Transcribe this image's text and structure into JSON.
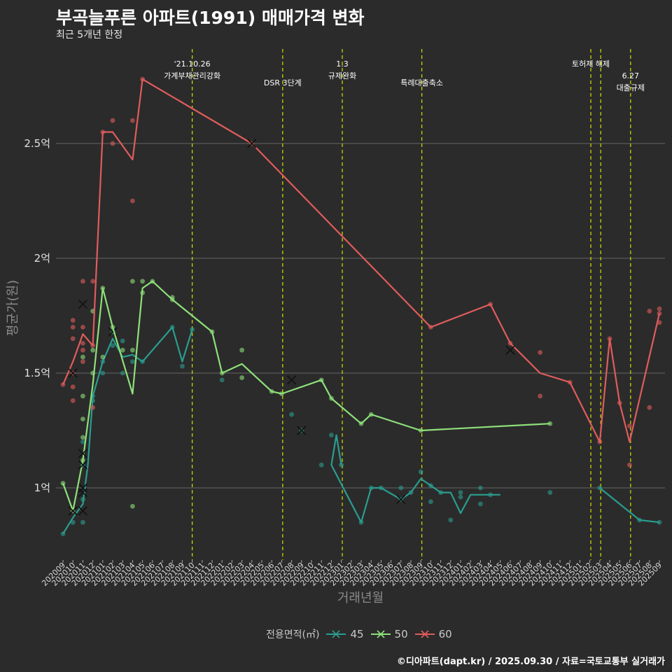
{
  "chart_data": {
    "type": "line",
    "title": "부곡늘푸른 아파트(1991) 매매가격 변화",
    "subtitle": "최근 5개년 한정",
    "xlabel": "거래년월",
    "ylabel": "평균가(원)",
    "caption": "©디아파트(dapt.kr) / 2025.09.30 / 자료=국토교통부 실거래가",
    "legend_title": "전용면적(㎡)",
    "categories": [
      "202009",
      "202010",
      "202011",
      "202012",
      "202101",
      "202102",
      "202103",
      "202104",
      "202105",
      "202106",
      "202107",
      "202108",
      "202109",
      "202110",
      "202111",
      "202112",
      "202201",
      "202202",
      "202203",
      "202204",
      "202205",
      "202206",
      "202207",
      "202208",
      "202209",
      "202210",
      "202211",
      "202212",
      "202301",
      "202302",
      "202303",
      "202304",
      "202305",
      "202306",
      "202307",
      "202308",
      "202309",
      "202310",
      "202311",
      "202312",
      "202401",
      "202402",
      "202403",
      "202404",
      "202405",
      "202406",
      "202407",
      "202408",
      "202409",
      "202410",
      "202411",
      "202412",
      "202501",
      "202502",
      "202503",
      "202504",
      "202505",
      "202506",
      "202507",
      "202508",
      "202509"
    ],
    "ylim": [
      0.7,
      2.9
    ],
    "y_ticks": [
      {
        "value": 1.0,
        "label": "1억"
      },
      {
        "value": 1.5,
        "label": "1.5억"
      },
      {
        "value": 2.0,
        "label": "2억"
      },
      {
        "value": 2.5,
        "label": "2.5억"
      }
    ],
    "vlines": [
      {
        "pos": 13.0,
        "label": "'21.10.26\n가계부채관리강화",
        "row": 0
      },
      {
        "pos": 22.1,
        "label": "DSR 3단계",
        "row": 1
      },
      {
        "pos": 28.1,
        "label": "1.3\n규제완화",
        "row": 0
      },
      {
        "pos": 36.1,
        "label": "특례대출축소",
        "row": 1
      },
      {
        "pos": 53.1,
        "label": "토허제 해제",
        "row": 0
      },
      {
        "pos": 54.1,
        "label": "",
        "row": 0
      },
      {
        "pos": 57.1,
        "label": "6.27\n대출규제",
        "row": 2
      }
    ],
    "series": [
      {
        "name": "45",
        "color": "#2a9d8f",
        "line": [
          [
            0,
            0.8
          ],
          [
            1,
            0.87
          ],
          [
            2,
            0.93
          ],
          [
            2.5,
            1.1
          ],
          [
            3,
            1.4
          ],
          [
            4,
            1.55
          ],
          [
            5,
            1.65
          ],
          [
            6,
            1.57
          ],
          [
            7,
            1.58
          ],
          [
            8,
            1.55
          ],
          [
            11,
            1.7
          ],
          [
            12,
            1.55
          ],
          [
            13,
            1.69
          ],
          [
            28,
            1.1
          ],
          [
            27.5,
            1.23
          ],
          [
            27,
            1.1
          ],
          [
            30,
            0.85
          ],
          [
            31,
            1.0
          ],
          [
            32,
            1.0
          ],
          [
            34,
            0.95
          ],
          [
            35,
            0.98
          ],
          [
            36,
            1.04
          ],
          [
            37,
            1.01
          ],
          [
            38,
            0.98
          ],
          [
            39,
            0.98
          ],
          [
            40,
            0.89
          ],
          [
            41,
            0.97
          ],
          [
            43,
            0.97
          ],
          [
            44,
            0.97
          ],
          [
            54,
            1.0
          ],
          [
            58,
            0.86
          ],
          [
            60,
            0.85
          ]
        ],
        "line_breaks": [
          [
            13,
            28
          ],
          [
            28,
            30
          ],
          [
            44,
            54
          ]
        ],
        "points": [
          [
            0,
            0.8
          ],
          [
            1,
            0.85
          ],
          [
            2,
            0.85
          ],
          [
            2,
            0.95
          ],
          [
            2,
            1.1
          ],
          [
            2,
            1.2
          ],
          [
            3,
            1.38
          ],
          [
            3,
            1.4
          ],
          [
            4,
            1.5
          ],
          [
            4,
            1.55
          ],
          [
            5,
            1.62
          ],
          [
            5,
            1.68
          ],
          [
            6,
            1.5
          ],
          [
            6,
            1.64
          ],
          [
            7,
            1.55
          ],
          [
            8,
            1.55
          ],
          [
            11,
            1.7
          ],
          [
            12,
            1.53
          ],
          [
            13,
            1.69
          ],
          [
            16,
            1.47
          ],
          [
            23,
            1.32
          ],
          [
            24,
            1.25
          ],
          [
            26,
            1.1
          ],
          [
            27,
            1.23
          ],
          [
            28,
            1.1
          ],
          [
            30,
            0.85
          ],
          [
            31,
            1.0
          ],
          [
            32,
            1.0
          ],
          [
            34,
            1.0
          ],
          [
            34,
            0.95
          ],
          [
            35,
            0.98
          ],
          [
            36,
            1.07
          ],
          [
            37,
            1.01
          ],
          [
            37,
            0.94
          ],
          [
            38,
            0.98
          ],
          [
            39,
            0.86
          ],
          [
            40,
            0.98
          ],
          [
            40,
            0.96
          ],
          [
            42,
            1.0
          ],
          [
            42,
            0.93
          ],
          [
            43,
            0.97
          ],
          [
            49,
            0.98
          ],
          [
            54,
            1.0
          ],
          [
            58,
            0.86
          ],
          [
            60,
            0.85
          ]
        ],
        "crosses": [
          [
            1,
            0.9
          ],
          [
            2,
            0.9
          ],
          [
            2,
            1.0
          ],
          [
            5,
            1.68
          ],
          [
            24,
            1.25
          ],
          [
            34,
            0.95
          ]
        ]
      },
      {
        "name": "50",
        "color": "#8ee07a",
        "line": [
          [
            0,
            1.02
          ],
          [
            1,
            0.9
          ],
          [
            2,
            1.12
          ],
          [
            3,
            1.45
          ],
          [
            4,
            1.87
          ],
          [
            5,
            1.7
          ],
          [
            7,
            1.41
          ],
          [
            8,
            1.87
          ],
          [
            9,
            1.9
          ],
          [
            11,
            1.82
          ],
          [
            15,
            1.68
          ],
          [
            16,
            1.5
          ],
          [
            18,
            1.54
          ],
          [
            21,
            1.42
          ],
          [
            22,
            1.41
          ],
          [
            26,
            1.47
          ],
          [
            27,
            1.39
          ],
          [
            30,
            1.28
          ],
          [
            31,
            1.32
          ],
          [
            36,
            1.25
          ],
          [
            49,
            1.28
          ]
        ],
        "line_breaks": [],
        "points": [
          [
            0,
            1.02
          ],
          [
            1,
            0.9
          ],
          [
            2,
            1.12
          ],
          [
            2,
            1.22
          ],
          [
            2,
            1.3
          ],
          [
            2,
            1.4
          ],
          [
            2,
            1.57
          ],
          [
            3,
            1.5
          ],
          [
            3,
            1.6
          ],
          [
            3,
            1.77
          ],
          [
            4,
            1.87
          ],
          [
            4,
            1.57
          ],
          [
            5,
            1.7
          ],
          [
            6,
            1.6
          ],
          [
            7,
            1.9
          ],
          [
            7,
            1.6
          ],
          [
            7,
            0.92
          ],
          [
            8,
            1.9
          ],
          [
            8,
            1.85
          ],
          [
            9,
            1.9
          ],
          [
            11,
            1.82
          ],
          [
            11,
            1.83
          ],
          [
            15,
            1.68
          ],
          [
            16,
            1.5
          ],
          [
            18,
            1.6
          ],
          [
            18,
            1.48
          ],
          [
            21,
            1.42
          ],
          [
            22,
            1.41
          ],
          [
            26,
            1.47
          ],
          [
            27,
            1.39
          ],
          [
            30,
            1.28
          ],
          [
            31,
            1.32
          ],
          [
            36,
            1.25
          ],
          [
            49,
            1.28
          ]
        ],
        "crosses": [
          [
            1,
            0.9
          ],
          [
            2,
            1.1
          ],
          [
            2,
            1.15
          ],
          [
            2,
            0.98
          ],
          [
            23,
            1.47
          ]
        ]
      },
      {
        "name": "60",
        "color": "#e05c5c",
        "line": [
          [
            0,
            1.45
          ],
          [
            1,
            1.55
          ],
          [
            2,
            1.67
          ],
          [
            3,
            1.62
          ],
          [
            4,
            2.55
          ],
          [
            5,
            2.55
          ],
          [
            7,
            2.43
          ],
          [
            8,
            2.78
          ],
          [
            19,
            2.5
          ],
          [
            37,
            1.7
          ],
          [
            43,
            1.8
          ],
          [
            45,
            1.63
          ],
          [
            48,
            1.5
          ],
          [
            51,
            1.46
          ],
          [
            54,
            1.2
          ],
          [
            55,
            1.65
          ],
          [
            56,
            1.37
          ],
          [
            57,
            1.2
          ],
          [
            60,
            1.76
          ]
        ],
        "line_breaks": [],
        "points": [
          [
            0,
            1.45
          ],
          [
            1,
            1.5
          ],
          [
            1,
            1.38
          ],
          [
            1,
            1.44
          ],
          [
            1,
            1.65
          ],
          [
            1,
            1.7
          ],
          [
            1,
            1.73
          ],
          [
            2,
            1.7
          ],
          [
            2,
            1.63
          ],
          [
            2,
            1.6
          ],
          [
            2,
            1.55
          ],
          [
            2,
            1.9
          ],
          [
            3,
            1.9
          ],
          [
            3,
            1.62
          ],
          [
            3,
            1.35
          ],
          [
            4,
            2.55
          ],
          [
            5,
            2.6
          ],
          [
            5,
            2.5
          ],
          [
            7,
            2.6
          ],
          [
            7,
            2.25
          ],
          [
            8,
            2.78
          ],
          [
            19,
            2.5
          ],
          [
            37,
            1.7
          ],
          [
            43,
            1.8
          ],
          [
            45,
            1.63
          ],
          [
            48,
            1.59
          ],
          [
            48,
            1.4
          ],
          [
            51,
            1.46
          ],
          [
            54,
            1.2
          ],
          [
            55,
            1.65
          ],
          [
            56,
            1.37
          ],
          [
            57,
            1.27
          ],
          [
            57,
            1.1
          ],
          [
            59,
            1.35
          ],
          [
            59,
            1.77
          ],
          [
            60,
            1.78
          ],
          [
            60,
            1.76
          ],
          [
            60,
            1.72
          ]
        ],
        "crosses": [
          [
            1,
            1.5
          ],
          [
            2,
            1.8
          ],
          [
            19,
            2.5
          ],
          [
            45,
            1.6
          ]
        ]
      }
    ]
  }
}
